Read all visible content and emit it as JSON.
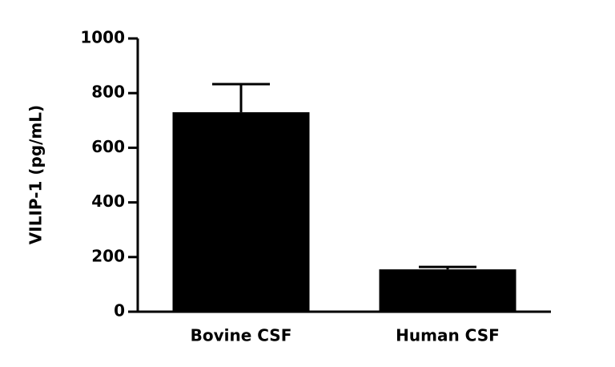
{
  "chart_data": {
    "type": "bar",
    "y_label": "VILIP-1 (pg/mL)",
    "categories": [
      "Bovine CSF",
      "Human CSF"
    ],
    "values": [
      730,
      155
    ],
    "errors": [
      103,
      9
    ],
    "color": "#000000",
    "ylim": [
      0,
      1000
    ],
    "yticks": [
      0,
      200,
      400,
      600,
      800,
      1000
    ]
  }
}
